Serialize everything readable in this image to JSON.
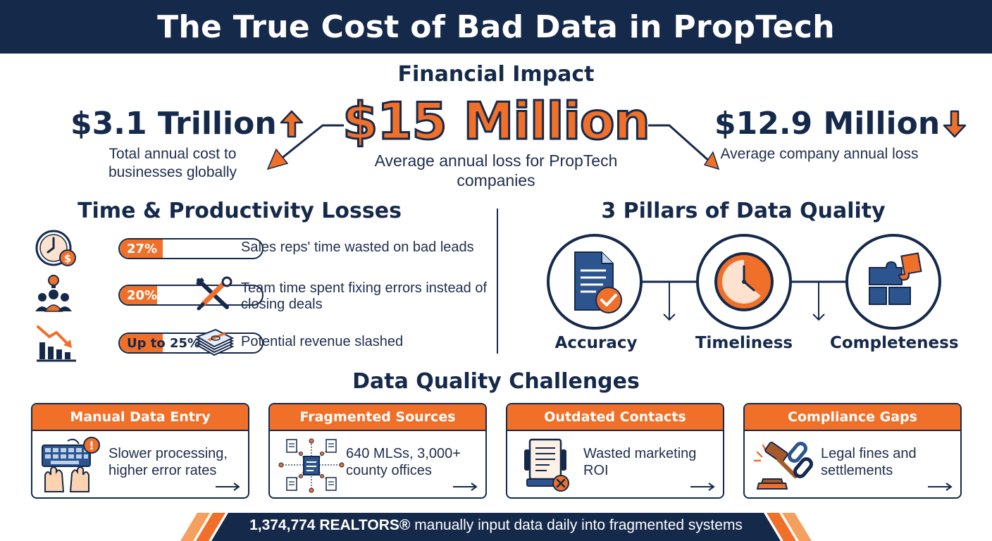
{
  "title": "The True Cost of Bad Data in PropTech",
  "financial": {
    "section_title": "Financial Impact",
    "center": {
      "value": "$15 Million",
      "caption": "Average annual loss for PropTech companies"
    },
    "left": {
      "value": "$3.1 Trillion",
      "caption": "Total annual cost to businesses globally",
      "trend": "up"
    },
    "right": {
      "value": "$12.9 Million",
      "caption": "Average company annual loss",
      "trend": "down"
    }
  },
  "productivity": {
    "section_title": "Time & Productivity Losses",
    "rows": [
      {
        "label": "27%",
        "fraction": 0.27,
        "text": "Sales reps' time wasted on bad leads",
        "icon": "clock-dollar-icon"
      },
      {
        "label": "20%",
        "fraction": 0.2,
        "text": "Team time spent fixing errors instead of closing deals",
        "icon": "team-idea-icon",
        "side_icon": "wrench-screwdriver-icon"
      },
      {
        "label": "Up to 25%",
        "fraction": 0.25,
        "text": "Potential revenue slashed",
        "icon": "declining-chart-icon",
        "side_icon": "cash-stack-icon"
      }
    ]
  },
  "pillars": {
    "section_title": "3 Pillars of Data Quality",
    "items": [
      {
        "label": "Accuracy",
        "icon": "document-check-icon"
      },
      {
        "label": "Timeliness",
        "icon": "clock-icon"
      },
      {
        "label": "Completeness",
        "icon": "puzzle-icon"
      }
    ]
  },
  "challenges": {
    "section_title": "Data Quality Challenges",
    "cards": [
      {
        "title": "Manual Data Entry",
        "text": "Slower processing, higher error rates",
        "icon": "keyboard-hands-icon"
      },
      {
        "title": "Fragmented Sources",
        "text": "640 MLSs, 3,000+ county offices",
        "icon": "network-documents-icon"
      },
      {
        "title": "Outdated Contacts",
        "text": "Wasted marketing ROI",
        "icon": "rolodex-error-icon"
      },
      {
        "title": "Compliance Gaps",
        "text": "Legal fines and settlements",
        "icon": "gavel-chain-icon"
      }
    ]
  },
  "footer": {
    "bold": "1,374,774 REALTORS®",
    "rest": " manually input data daily into fragmented systems"
  },
  "colors": {
    "navy": "#15294b",
    "orange": "#f0702a",
    "light_orange": "#f5a05f"
  }
}
